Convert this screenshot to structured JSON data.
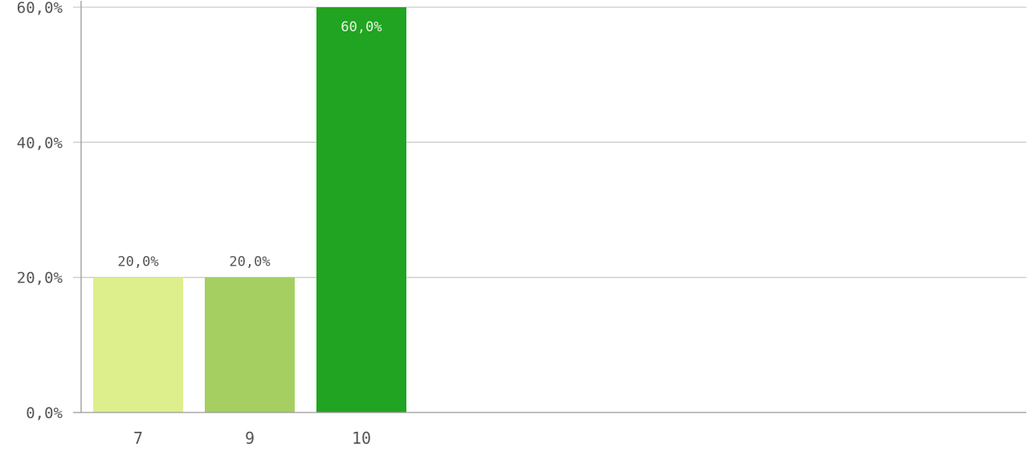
{
  "chart_data": {
    "type": "bar",
    "categories": [
      "7",
      "9",
      "10"
    ],
    "values": [
      20.0,
      20.0,
      60.0
    ],
    "value_labels": [
      "20,0%",
      "20,0%",
      "60,0%"
    ],
    "bar_colors": [
      "#dcef8c",
      "#a5cf60",
      "#21a421"
    ],
    "value_label_colors": [
      "#555555",
      "#555555",
      "#e8f5e0"
    ],
    "ylim": [
      0,
      60
    ],
    "yticks": [
      0,
      20,
      40,
      60
    ],
    "ytick_labels": [
      "0,0%",
      "20,0%",
      "40,0%",
      "60,0%"
    ],
    "grid": true,
    "grid_color": "#cccccc",
    "axis_color": "#999999",
    "title": "",
    "xlabel": "",
    "ylabel": ""
  }
}
